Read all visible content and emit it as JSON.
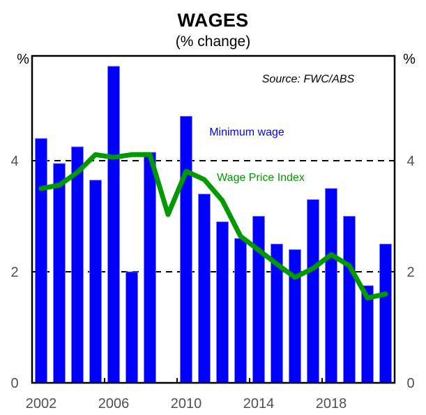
{
  "header": {
    "title": "WAGES",
    "subtitle": "(% change)"
  },
  "axes": {
    "left_unit": "%",
    "right_unit": "%",
    "y_ticks": [
      "0",
      "2",
      "4"
    ],
    "x_ticks": [
      "2002",
      "2006",
      "2010",
      "2014",
      "2018"
    ]
  },
  "annotations": {
    "source": "Source: FWC/ABS",
    "minimum_wage_label": "Minimum wage",
    "wpi_label": "Wage Price Index"
  },
  "colors": {
    "minimum_wage": "#0000FF",
    "wage_price_index": "#009900",
    "gridline": "#000000",
    "tick_text": "#505050"
  },
  "chart_data": {
    "type": "bar",
    "title": "WAGES",
    "subtitle": "(% change)",
    "xlabel": "",
    "ylabel": "%",
    "ylim": [
      0,
      5.9
    ],
    "yticks": [
      0,
      2,
      4
    ],
    "grid": "dashed horizontal lines at 2 and 4",
    "legend": "inline labels inside plot",
    "source": "Source: FWC/ABS",
    "categories": [
      2002,
      2003,
      2004,
      2005,
      2006,
      2007,
      2008,
      2009,
      2010,
      2011,
      2012,
      2013,
      2014,
      2015,
      2016,
      2017,
      2018,
      2019,
      2020,
      2021
    ],
    "series": [
      {
        "name": "Minimum wage",
        "type": "bar",
        "color": "#0000FF",
        "values": [
          4.4,
          3.95,
          4.25,
          3.65,
          5.7,
          2.0,
          4.15,
          null,
          4.8,
          3.4,
          2.9,
          2.6,
          3.0,
          2.5,
          2.4,
          3.3,
          3.5,
          3.0,
          1.75,
          2.5
        ]
      },
      {
        "name": "Wage Price Index",
        "type": "line",
        "color": "#009900",
        "values": [
          3.5,
          3.56,
          3.79,
          4.11,
          4.06,
          4.11,
          4.11,
          3.03,
          3.81,
          3.66,
          3.28,
          2.64,
          2.39,
          2.14,
          1.9,
          2.06,
          2.31,
          2.11,
          1.53,
          1.6
        ]
      }
    ]
  }
}
